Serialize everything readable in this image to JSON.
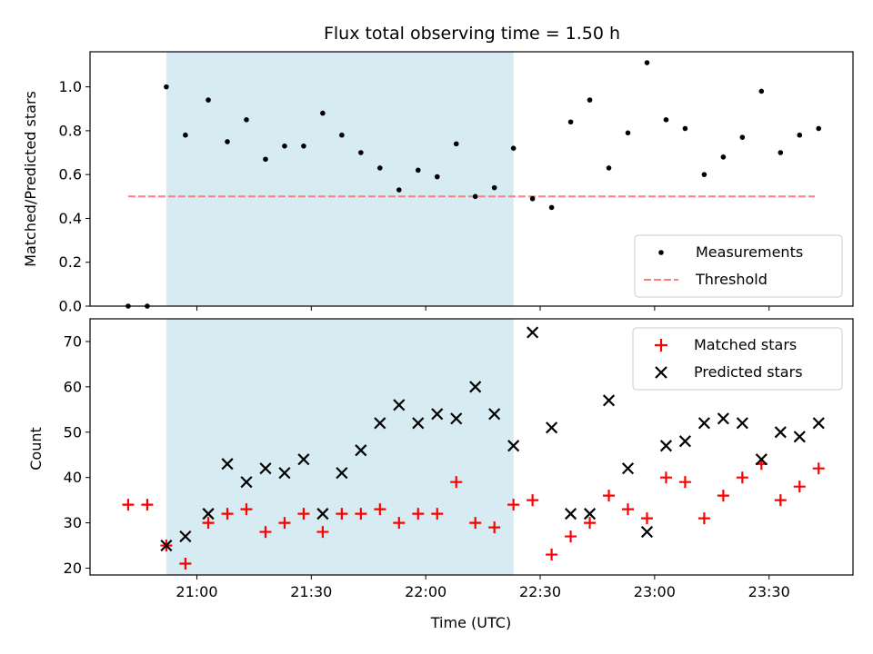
{
  "title": "Flux total observing time = 1.50 h",
  "colors": {
    "shade": "#add8e6",
    "threshold": "#ff7f7f",
    "matched": "#ff0000",
    "predicted": "#000000",
    "measurement": "#000000"
  },
  "chart_data": [
    {
      "type": "scatter",
      "ylabel": "Matched/Predicted stars",
      "xlim": [
        "20:32",
        "23:52"
      ],
      "ylim": [
        0,
        1.16
      ],
      "yticks": [
        "0.0",
        "0.2",
        "0.4",
        "0.6",
        "0.8",
        "1.0"
      ],
      "shaded_span": [
        "20:52",
        "22:23"
      ],
      "threshold": {
        "name": "Threshold",
        "y": 0.5,
        "x": [
          "20:42",
          "23:42"
        ]
      },
      "legend_position": "lower-right",
      "series": [
        {
          "name": "Measurements",
          "x": [
            "20:42",
            "20:47",
            "20:52",
            "20:57",
            "21:03",
            "21:08",
            "21:13",
            "21:18",
            "21:23",
            "21:28",
            "21:33",
            "21:38",
            "21:43",
            "21:48",
            "21:53",
            "21:58",
            "22:03",
            "22:08",
            "22:13",
            "22:18",
            "22:23",
            "22:28",
            "22:33",
            "22:38",
            "22:43",
            "22:48",
            "22:53",
            "22:58",
            "23:03",
            "23:08",
            "23:13",
            "23:18",
            "23:23",
            "23:28",
            "23:33",
            "23:38",
            "23:43"
          ],
          "y": [
            0.0,
            0.0,
            1.0,
            0.78,
            0.94,
            0.75,
            0.85,
            0.67,
            0.73,
            0.73,
            0.88,
            0.78,
            0.7,
            0.63,
            0.53,
            0.62,
            0.59,
            0.74,
            0.5,
            0.54,
            0.72,
            0.49,
            0.45,
            0.84,
            0.94,
            0.63,
            0.79,
            1.11,
            0.85,
            0.81,
            0.6,
            0.68,
            0.77,
            0.98,
            0.7,
            0.78,
            0.81
          ]
        }
      ]
    },
    {
      "type": "scatter",
      "xlabel": "Time (UTC)",
      "ylabel": "Count",
      "xlim": [
        "20:32",
        "23:52"
      ],
      "ylim": [
        18.5,
        75
      ],
      "yticks": [
        "20",
        "30",
        "40",
        "50",
        "60",
        "70"
      ],
      "xticks": [
        "21:00",
        "21:30",
        "22:00",
        "22:30",
        "23:00",
        "23:30"
      ],
      "shaded_span": [
        "20:52",
        "22:23"
      ],
      "legend_position": "upper-right",
      "series": [
        {
          "name": "Matched stars",
          "x": [
            "20:42",
            "20:47",
            "20:52",
            "20:57",
            "21:03",
            "21:08",
            "21:13",
            "21:18",
            "21:23",
            "21:28",
            "21:33",
            "21:38",
            "21:43",
            "21:48",
            "21:53",
            "21:58",
            "22:03",
            "22:08",
            "22:13",
            "22:18",
            "22:23",
            "22:28",
            "22:33",
            "22:38",
            "22:43",
            "22:48",
            "22:53",
            "22:58",
            "23:03",
            "23:08",
            "23:13",
            "23:18",
            "23:23",
            "23:28",
            "23:33",
            "23:38",
            "23:43"
          ],
          "y": [
            34,
            34,
            25,
            21,
            30,
            32,
            33,
            28,
            30,
            32,
            28,
            32,
            32,
            33,
            30,
            32,
            32,
            39,
            30,
            29,
            34,
            35,
            23,
            27,
            30,
            36,
            33,
            31,
            40,
            39,
            31,
            36,
            40,
            43,
            35,
            38,
            42
          ]
        },
        {
          "name": "Predicted stars",
          "x": [
            "20:52",
            "20:57",
            "21:03",
            "21:08",
            "21:13",
            "21:18",
            "21:23",
            "21:28",
            "21:33",
            "21:38",
            "21:43",
            "21:48",
            "21:53",
            "21:58",
            "22:03",
            "22:08",
            "22:13",
            "22:18",
            "22:23",
            "22:28",
            "22:33",
            "22:38",
            "22:43",
            "22:48",
            "22:53",
            "22:58",
            "23:03",
            "23:08",
            "23:13",
            "23:18",
            "23:23",
            "23:28",
            "23:33",
            "23:38",
            "23:43"
          ],
          "y": [
            25,
            27,
            32,
            43,
            39,
            42,
            41,
            44,
            32,
            41,
            46,
            52,
            56,
            52,
            54,
            53,
            60,
            54,
            47,
            72,
            51,
            32,
            32,
            57,
            42,
            28,
            47,
            48,
            52,
            53,
            52,
            44,
            50,
            49,
            52
          ]
        }
      ]
    }
  ]
}
